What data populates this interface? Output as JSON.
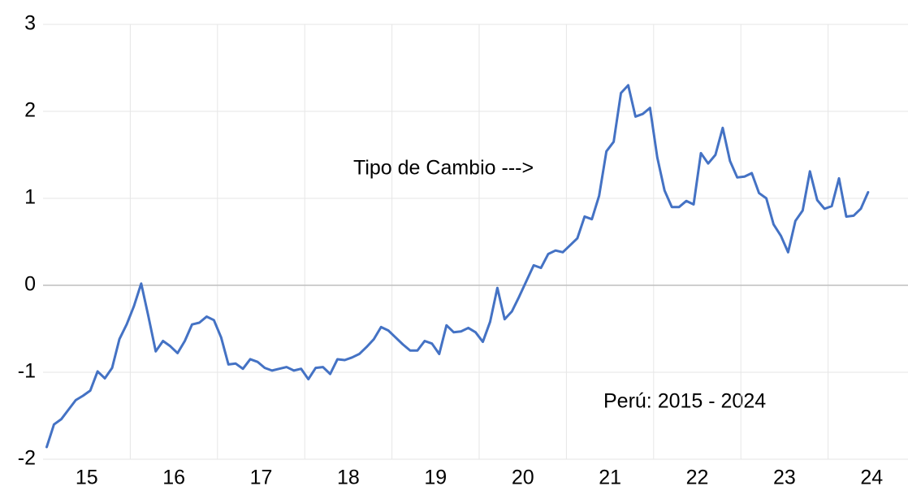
{
  "chart_data": {
    "type": "line",
    "annotations": [
      "Tipo de Cambio --->",
      "Perú: 2015 - 2024"
    ],
    "categories": [
      null,
      null,
      null,
      null,
      null,
      "15",
      null,
      null,
      null,
      null,
      null,
      null,
      null,
      null,
      null,
      null,
      null,
      "16",
      null,
      null,
      null,
      null,
      null,
      null,
      null,
      null,
      null,
      null,
      null,
      "17",
      null,
      null,
      null,
      null,
      null,
      null,
      null,
      null,
      null,
      null,
      null,
      "18",
      null,
      null,
      null,
      null,
      null,
      null,
      null,
      null,
      null,
      null,
      null,
      "19",
      null,
      null,
      null,
      null,
      null,
      null,
      null,
      null,
      null,
      null,
      null,
      "20",
      null,
      null,
      null,
      null,
      null,
      null,
      null,
      null,
      null,
      null,
      null,
      "21",
      null,
      null,
      null,
      null,
      null,
      null,
      null,
      null,
      null,
      null,
      null,
      "22",
      null,
      null,
      null,
      null,
      null,
      null,
      null,
      null,
      null,
      null,
      null,
      "23",
      null,
      null,
      null,
      null,
      null,
      null,
      null,
      null,
      null,
      null,
      null,
      "24"
    ],
    "series": [
      {
        "color": "#4472c4",
        "values": [
          -1.86,
          -1.6,
          -1.54,
          -1.43,
          -1.32,
          -1.27,
          -1.21,
          -0.99,
          -1.07,
          -0.95,
          -0.62,
          -0.45,
          -0.24,
          0.02,
          -0.36,
          -0.76,
          -0.64,
          -0.7,
          -0.78,
          -0.64,
          -0.45,
          -0.43,
          -0.36,
          -0.4,
          -0.6,
          -0.91,
          -0.9,
          -0.96,
          -0.85,
          -0.88,
          -0.95,
          -0.98,
          -0.96,
          -0.94,
          -0.98,
          -0.96,
          -1.08,
          -0.95,
          -0.94,
          -1.02,
          -0.85,
          -0.86,
          -0.83,
          -0.79,
          -0.71,
          -0.62,
          -0.48,
          -0.52,
          -0.6,
          -0.68,
          -0.75,
          -0.75,
          -0.64,
          -0.67,
          -0.79,
          -0.46,
          -0.54,
          -0.53,
          -0.49,
          -0.54,
          -0.65,
          -0.42,
          -0.03,
          -0.39,
          -0.3,
          -0.13,
          0.05,
          0.23,
          0.2,
          0.36,
          0.4,
          0.38,
          0.46,
          0.54,
          0.79,
          0.76,
          1.03,
          1.54,
          1.65,
          2.21,
          2.3,
          1.94,
          1.97,
          2.04,
          1.47,
          1.09,
          0.9,
          0.9,
          0.97,
          0.93,
          1.52,
          1.4,
          1.5,
          1.81,
          1.43,
          1.24,
          1.25,
          1.29,
          1.06,
          1.0,
          0.7,
          0.57,
          0.38,
          0.74,
          0.86,
          1.31,
          0.98,
          0.88,
          0.91,
          1.23,
          0.79,
          0.8,
          0.88,
          1.07
        ]
      }
    ],
    "ylim": [
      -2,
      3
    ],
    "yticks": [
      -2,
      -1,
      0,
      1,
      2,
      3
    ],
    "grid": true
  }
}
